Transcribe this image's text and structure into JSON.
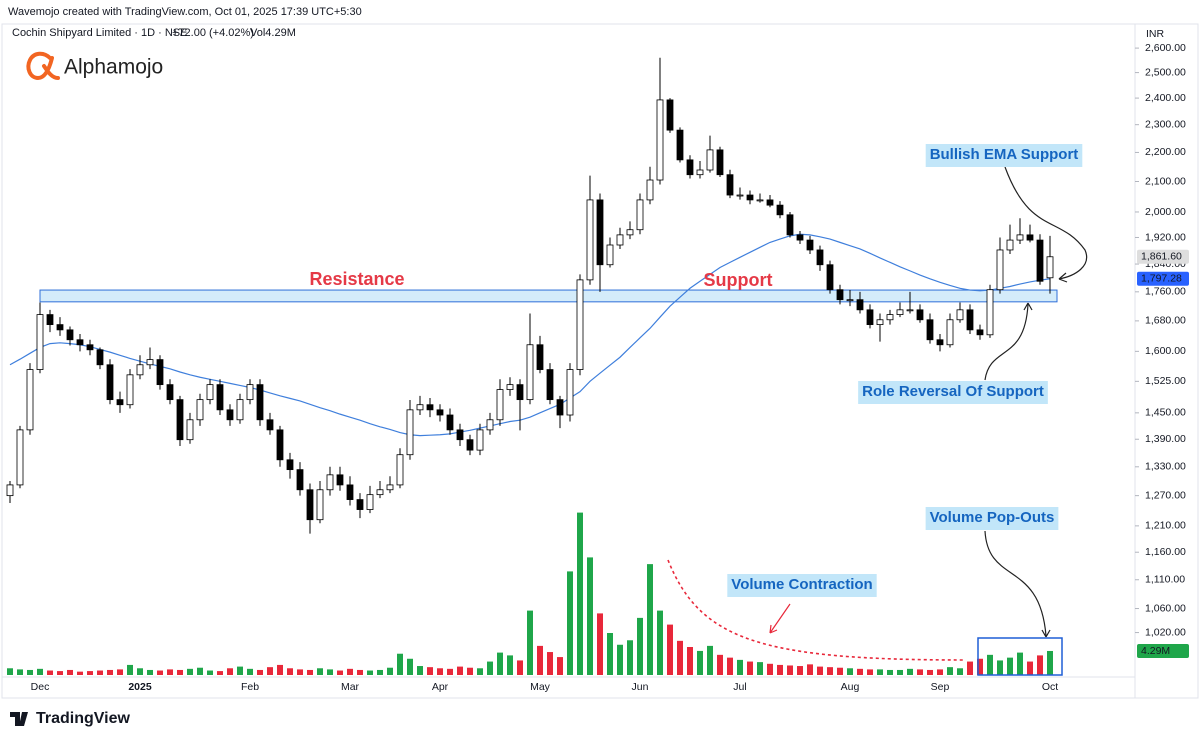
{
  "header": {
    "credit": "Wavemojo created with TradingView.com, Oct 01, 2025 17:39 UTC+5:30",
    "symbol": "Cochin Shipyard Limited · 1D · NSE",
    "change": "+72.00 (+4.02%)",
    "vol": "Vol4.29M"
  },
  "brand": "Alphamojo",
  "footer": "TradingView",
  "chart_data": {
    "type": "candlestick",
    "currency": "INR",
    "log_scale": true,
    "ylim": [
      953,
      2685
    ],
    "yticks": [
      {
        "value": 2600,
        "label": "2,600.00"
      },
      {
        "value": 2500,
        "label": "2,500.00"
      },
      {
        "value": 2400,
        "label": "2,400.00"
      },
      {
        "value": 2300,
        "label": "2,300.00"
      },
      {
        "value": 2200,
        "label": "2,200.00"
      },
      {
        "value": 2100,
        "label": "2,100.00"
      },
      {
        "value": 2000,
        "label": "2,000.00"
      },
      {
        "value": 1920,
        "label": "1,920.00"
      },
      {
        "value": 1840,
        "label": "1,840.00"
      },
      {
        "value": 1760,
        "label": "1,760.00"
      },
      {
        "value": 1680,
        "label": "1,680.00"
      },
      {
        "value": 1600,
        "label": "1,600.00"
      },
      {
        "value": 1525,
        "label": "1,525.00"
      },
      {
        "value": 1450,
        "label": "1,450.00"
      },
      {
        "value": 1390,
        "label": "1,390.00"
      },
      {
        "value": 1330,
        "label": "1,330.00"
      },
      {
        "value": 1270,
        "label": "1,270.00"
      },
      {
        "value": 1210,
        "label": "1,210.00"
      },
      {
        "value": 1160,
        "label": "1,160.00"
      },
      {
        "value": 1110,
        "label": "1,110.00"
      },
      {
        "value": 1060,
        "label": "1,060.00"
      },
      {
        "value": 1020,
        "label": "1,020.00"
      }
    ],
    "categories": [
      null,
      null,
      null,
      "Dec",
      null,
      null,
      null,
      null,
      null,
      null,
      null,
      null,
      null,
      "2025",
      null,
      null,
      null,
      null,
      null,
      null,
      null,
      null,
      null,
      null,
      "Feb",
      null,
      null,
      null,
      null,
      null,
      null,
      null,
      null,
      null,
      "Mar",
      null,
      null,
      null,
      null,
      null,
      null,
      null,
      null,
      "Apr",
      null,
      null,
      null,
      null,
      null,
      null,
      null,
      null,
      null,
      "May",
      null,
      null,
      null,
      null,
      null,
      null,
      null,
      null,
      null,
      "Jun",
      null,
      null,
      null,
      null,
      null,
      null,
      null,
      null,
      null,
      "Jul",
      null,
      null,
      null,
      null,
      null,
      null,
      null,
      null,
      null,
      null,
      "Aug",
      null,
      null,
      null,
      null,
      null,
      null,
      null,
      null,
      "Sep",
      null,
      null,
      null,
      null,
      null,
      null,
      null,
      null,
      null,
      null,
      "Oct"
    ],
    "open": [
      1270,
      1292,
      1411,
      1554,
      1697,
      1670,
      1656,
      1630,
      1617,
      1604,
      1566,
      1481,
      1469,
      1541,
      1566,
      1579,
      1517,
      1481,
      1389,
      1434,
      1481,
      1517,
      1457,
      1434,
      1481,
      1517,
      1434,
      1411,
      1345,
      1324,
      1282,
      1222,
      1282,
      1313,
      1292,
      1262,
      1242,
      1272,
      1282,
      1292,
      1356,
      1457,
      1469,
      1457,
      1445,
      1411,
      1389,
      1366,
      1411,
      1434,
      1505,
      1517,
      1481,
      1617,
      1554,
      1481,
      1445,
      1554,
      1794,
      2039,
      1838,
      1897,
      1928,
      1944,
      2039,
      2105,
      2393,
      2280,
      2174,
      2123,
      2139,
      2209,
      2123,
      2055,
      2055,
      2039,
      2039,
      2022,
      1991,
      1928,
      1912,
      1882,
      1838,
      1766,
      1738,
      1738,
      1710,
      1670,
      1683,
      1697,
      1710,
      1710,
      1683,
      1630,
      1617,
      1683,
      1710,
      1656,
      1643,
      1766,
      1882,
      1912,
      1928,
      1912,
      1800
    ],
    "high": [
      1300,
      1420,
      1570,
      1730,
      1710,
      1690,
      1665,
      1645,
      1630,
      1610,
      1580,
      1500,
      1555,
      1590,
      1610,
      1590,
      1530,
      1490,
      1450,
      1495,
      1530,
      1530,
      1470,
      1495,
      1530,
      1530,
      1450,
      1420,
      1360,
      1340,
      1295,
      1300,
      1330,
      1330,
      1310,
      1275,
      1290,
      1300,
      1310,
      1370,
      1480,
      1490,
      1485,
      1470,
      1460,
      1425,
      1400,
      1425,
      1450,
      1530,
      1535,
      1530,
      1700,
      1640,
      1570,
      1490,
      1570,
      1810,
      2120,
      2060,
      1920,
      1950,
      1970,
      2060,
      2150,
      2560,
      2400,
      2290,
      2190,
      2170,
      2260,
      2220,
      2140,
      2080,
      2070,
      2060,
      2055,
      2035,
      2000,
      1940,
      1925,
      1895,
      1850,
      1780,
      1765,
      1760,
      1725,
      1700,
      1710,
      1730,
      1760,
      1725,
      1700,
      1645,
      1700,
      1730,
      1725,
      1670,
      1780,
      1920,
      1960,
      1980,
      1960,
      1930,
      1925
    ],
    "low": [
      1255,
      1285,
      1400,
      1545,
      1650,
      1640,
      1615,
      1600,
      1590,
      1555,
      1470,
      1450,
      1460,
      1530,
      1555,
      1505,
      1470,
      1375,
      1380,
      1420,
      1470,
      1445,
      1420,
      1425,
      1470,
      1420,
      1400,
      1330,
      1305,
      1270,
      1195,
      1215,
      1270,
      1280,
      1250,
      1225,
      1235,
      1265,
      1275,
      1285,
      1345,
      1445,
      1440,
      1430,
      1400,
      1375,
      1355,
      1355,
      1400,
      1420,
      1490,
      1410,
      1470,
      1545,
      1470,
      1415,
      1430,
      1540,
      1780,
      1760,
      1830,
      1885,
      1915,
      1930,
      2025,
      2090,
      2270,
      2165,
      2110,
      2110,
      2130,
      2115,
      2045,
      2040,
      2025,
      2030,
      2015,
      1980,
      1920,
      1900,
      1870,
      1820,
      1755,
      1725,
      1720,
      1700,
      1660,
      1625,
      1670,
      1690,
      1700,
      1675,
      1620,
      1600,
      1610,
      1675,
      1645,
      1630,
      1635,
      1755,
      1870,
      1900,
      1905,
      1780,
      1755
    ],
    "close": [
      1292,
      1411,
      1554,
      1697,
      1670,
      1656,
      1630,
      1617,
      1604,
      1566,
      1481,
      1469,
      1541,
      1566,
      1579,
      1517,
      1481,
      1389,
      1434,
      1481,
      1517,
      1457,
      1434,
      1481,
      1517,
      1434,
      1411,
      1345,
      1324,
      1282,
      1222,
      1282,
      1313,
      1292,
      1262,
      1242,
      1272,
      1282,
      1292,
      1356,
      1457,
      1469,
      1457,
      1445,
      1411,
      1389,
      1366,
      1411,
      1434,
      1505,
      1517,
      1481,
      1617,
      1554,
      1481,
      1445,
      1554,
      1794,
      2039,
      1838,
      1897,
      1928,
      1944,
      2039,
      2105,
      2393,
      2280,
      2174,
      2123,
      2139,
      2209,
      2123,
      2055,
      2055,
      2039,
      2039,
      2022,
      1991,
      1928,
      1912,
      1882,
      1838,
      1766,
      1738,
      1738,
      1710,
      1670,
      1683,
      1697,
      1710,
      1710,
      1683,
      1630,
      1617,
      1683,
      1710,
      1656,
      1643,
      1766,
      1882,
      1912,
      1928,
      1912,
      1790,
      1861.6
    ],
    "volume": [
      1.2,
      1.0,
      0.9,
      1.1,
      0.8,
      0.7,
      0.9,
      0.6,
      0.7,
      0.8,
      0.9,
      1.0,
      1.8,
      1.2,
      0.9,
      0.8,
      1.0,
      0.9,
      1.1,
      1.3,
      0.8,
      0.7,
      1.2,
      1.5,
      1.1,
      0.9,
      1.4,
      1.8,
      1.2,
      1.0,
      0.9,
      1.2,
      1.0,
      0.8,
      1.1,
      0.9,
      0.8,
      0.9,
      1.3,
      3.8,
      2.9,
      1.6,
      1.4,
      1.2,
      1.1,
      1.5,
      1.3,
      1.2,
      2.4,
      4.0,
      3.5,
      2.6,
      11.5,
      5.2,
      4.1,
      3.2,
      18.5,
      29,
      21,
      11,
      7.5,
      5.4,
      6.2,
      10.2,
      19.8,
      11.5,
      9.0,
      6.1,
      5.0,
      4.3,
      5.2,
      3.6,
      3.1,
      2.7,
      2.4,
      2.3,
      2.0,
      1.8,
      1.7,
      1.6,
      1.9,
      1.5,
      1.4,
      1.3,
      1.2,
      1.1,
      1.0,
      1.0,
      0.9,
      0.9,
      1.1,
      1.0,
      0.9,
      1.0,
      1.4,
      1.2,
      2.4,
      2.9,
      3.6,
      2.6,
      3.1,
      4.0,
      2.4,
      3.5,
      4.29
    ],
    "volume_label": "4.29M",
    "ema": [
      1566,
      1580,
      1595,
      1610,
      1620,
      1622,
      1620,
      1617,
      1612,
      1605,
      1598,
      1590,
      1582,
      1575,
      1568,
      1562,
      1556,
      1548,
      1541,
      1535,
      1530,
      1525,
      1520,
      1515,
      1510,
      1504,
      1497,
      1490,
      1484,
      1478,
      1470,
      1462,
      1455,
      1447,
      1440,
      1433,
      1425,
      1418,
      1412,
      1405,
      1400,
      1398,
      1399,
      1400,
      1402,
      1406,
      1410,
      1415,
      1420,
      1425,
      1430,
      1433,
      1440,
      1450,
      1460,
      1470,
      1485,
      1500,
      1525,
      1545,
      1565,
      1585,
      1610,
      1635,
      1660,
      1690,
      1720,
      1745,
      1770,
      1790,
      1810,
      1830,
      1845,
      1860,
      1875,
      1890,
      1905,
      1915,
      1925,
      1930,
      1928,
      1922,
      1915,
      1905,
      1895,
      1885,
      1872,
      1858,
      1845,
      1832,
      1820,
      1808,
      1797,
      1787,
      1778,
      1770,
      1765,
      1763,
      1765,
      1770,
      1775,
      1782,
      1788,
      1793,
      1797.28
    ],
    "ema_color": "#3f7fdc",
    "up_color": "#ffffff",
    "down_color": "#000000",
    "volume_up_color": "#1fa64a",
    "volume_down_color": "#e8283a",
    "zone": [
      1732,
      1765
    ],
    "price_labels": [
      {
        "value": 1861.6,
        "label": "1,861.60",
        "color": "#dedede"
      },
      {
        "value": 1797.28,
        "label": "1,797.28",
        "color": "#2962ff"
      }
    ],
    "annotations": [
      "Resistance",
      "Support",
      "Bullish EMA Support",
      "Role Reversal Of Support",
      "Volume Pop-Outs",
      "Volume Contraction"
    ]
  }
}
